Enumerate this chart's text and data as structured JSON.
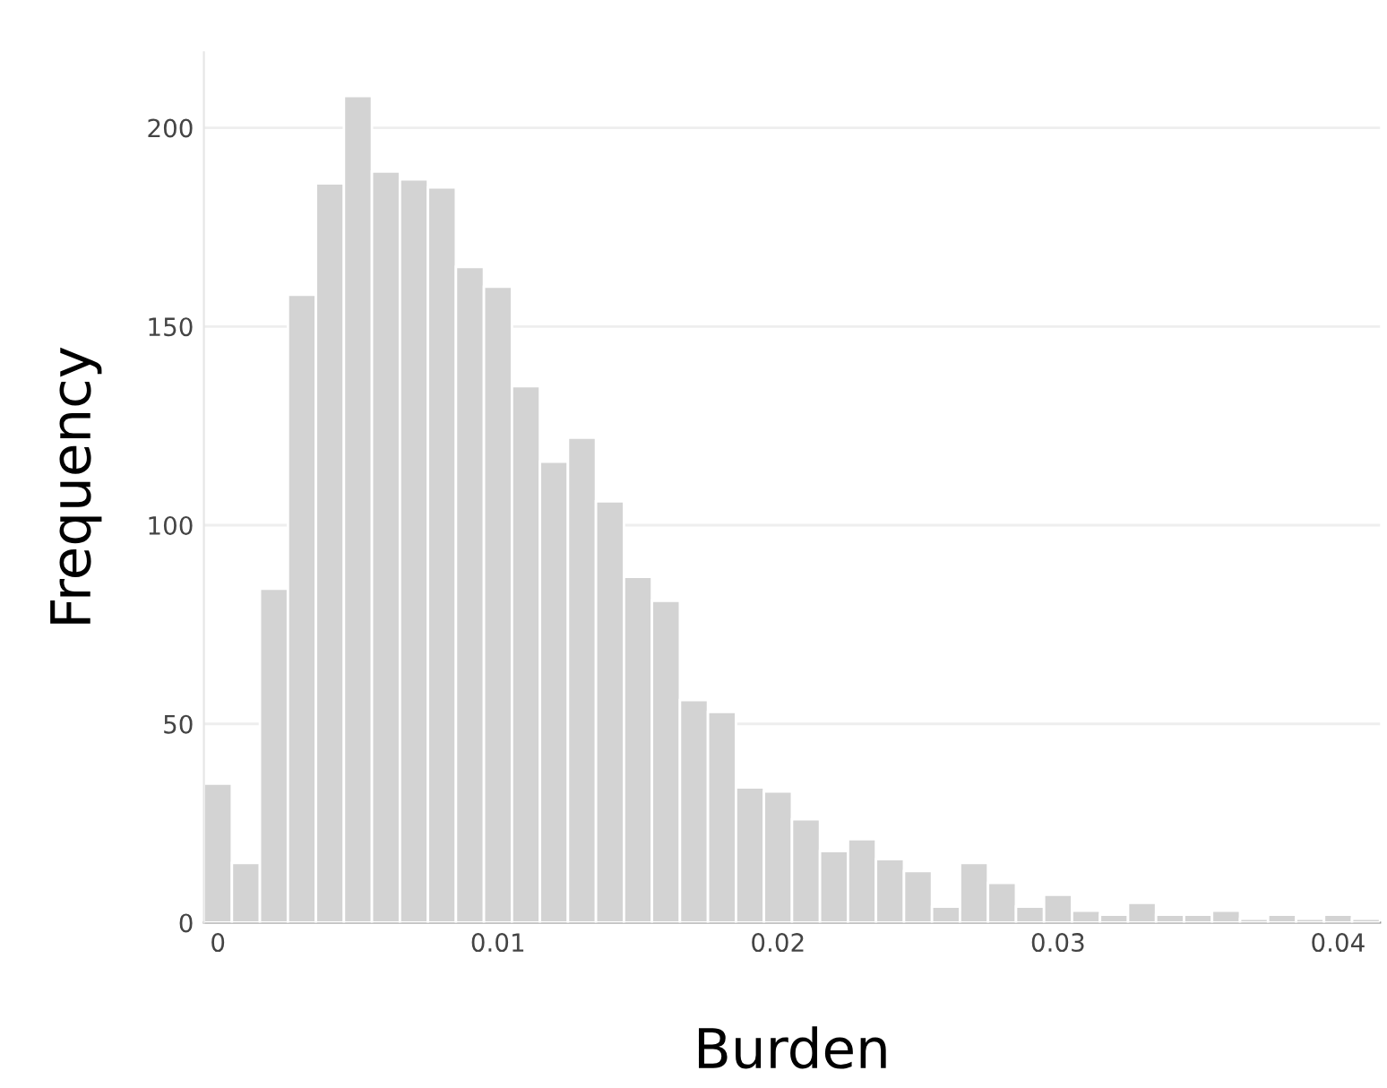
{
  "chart_data": {
    "type": "histogram",
    "xlabel": "Burden",
    "ylabel": "Frequency",
    "bins": [
      -0.0005,
      0.0005,
      0.0015,
      0.0025,
      0.0035,
      0.0045,
      0.0055,
      0.0065,
      0.0075,
      0.0085,
      0.0095,
      0.0105,
      0.0115,
      0.0125,
      0.0135,
      0.0145,
      0.0155,
      0.0165,
      0.0175,
      0.0185,
      0.0195,
      0.0205,
      0.0215,
      0.0225,
      0.0235,
      0.0245,
      0.0255,
      0.0265,
      0.0275,
      0.0285,
      0.0295,
      0.0305,
      0.0315,
      0.0325,
      0.0335,
      0.0345,
      0.0355,
      0.0365,
      0.0375,
      0.0385,
      0.0395,
      0.0405,
      0.0415
    ],
    "values": [
      35,
      15,
      84,
      158,
      186,
      208,
      189,
      187,
      185,
      165,
      160,
      135,
      116,
      122,
      106,
      87,
      81,
      56,
      53,
      34,
      33,
      26,
      18,
      21,
      16,
      13,
      4,
      15,
      10,
      4,
      7,
      3,
      2,
      5,
      2,
      2,
      3,
      1,
      2,
      1,
      2,
      1
    ],
    "color": "#d3d3d3",
    "xlim": [
      -0.0005,
      0.0415
    ],
    "ylim": [
      0,
      219
    ],
    "xticks": [
      0,
      0.01,
      0.02,
      0.03,
      0.04
    ],
    "yticks": [
      0,
      50,
      100,
      150,
      200
    ],
    "grid": "y",
    "legend": false
  }
}
